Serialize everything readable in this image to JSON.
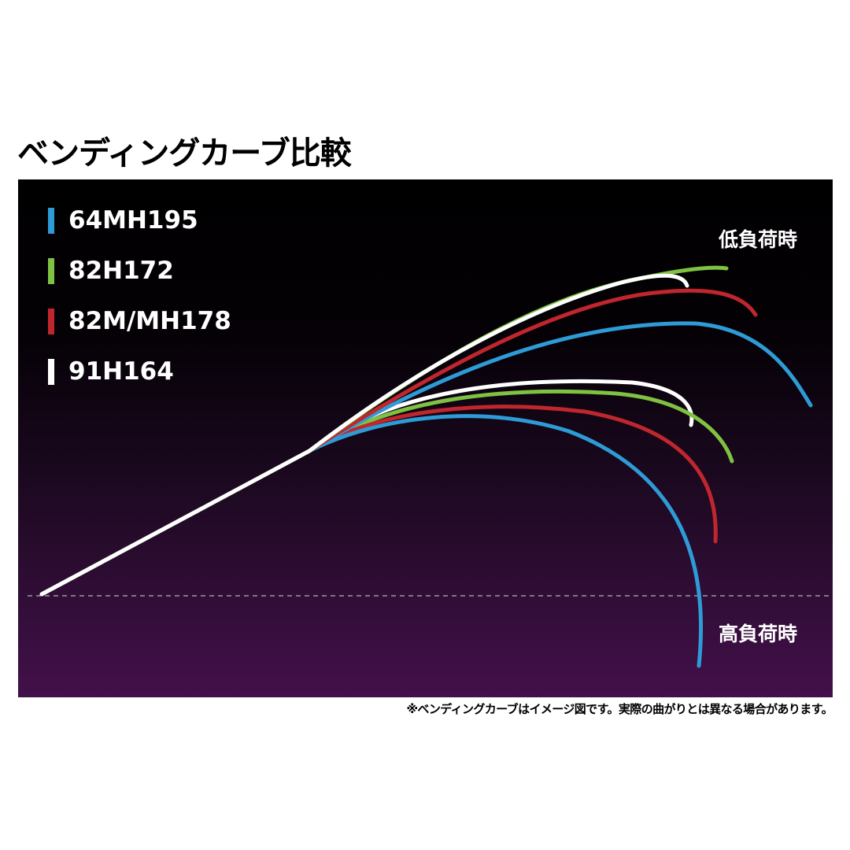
{
  "title": "ベンディングカーブ比較",
  "legend": [
    {
      "name": "64MH195",
      "color": "#2e9bd6"
    },
    {
      "name": "82H172",
      "color": "#7fc242"
    },
    {
      "name": "82M/MH178",
      "color": "#c0262d"
    },
    {
      "name": "91H164",
      "color": "#ffffff"
    }
  ],
  "labels": {
    "low_load": "低負荷時",
    "high_load": "高負荷時"
  },
  "footnote": "※ベンディングカーブはイメージ図です。実際の曲がりとは異なる場合があります。"
}
